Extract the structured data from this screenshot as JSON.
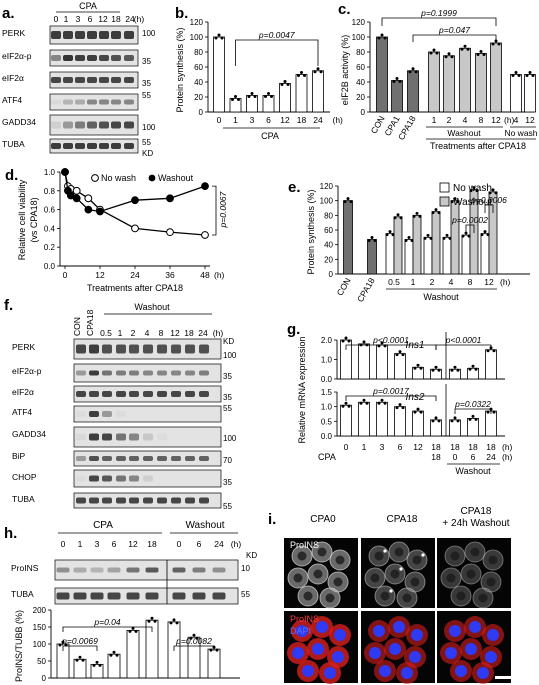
{
  "colors": {
    "ink": "#000000",
    "dark_bar": "#707070",
    "light_bar": "#c8c8c8",
    "white_bar": "#ffffff",
    "blot_bg": "#e3e3e3",
    "band": "#2a2a2a",
    "micro_bg": "#050505",
    "proins_red": "#d81e1e",
    "dapi_blue": "#2a3cff"
  },
  "panels": {
    "a": {
      "letter": "a.",
      "group": "CPA",
      "lanes": [
        "0",
        "1",
        "3",
        "6",
        "12",
        "18",
        "24",
        "(h)"
      ],
      "rows": [
        "PERK",
        "eIF2α-p",
        "eIF2α",
        "ATF4",
        "GADD34",
        "TUBA"
      ],
      "markers": [
        "100",
        "35",
        "35",
        "55",
        "100",
        "55"
      ],
      "kd": "KD"
    },
    "b": {
      "letter": "b.",
      "p": "p=0.0047",
      "xgroup": "CPA"
    },
    "c": {
      "letter": "c.",
      "p1": "p=0.1999",
      "p2": "p=0.047",
      "washout": "Washout",
      "nowash": "No wash",
      "treat": "Treatments after CPA18"
    },
    "d": {
      "letter": "d.",
      "legend_nowash": "No wash",
      "legend_washout": "Washout",
      "p": "p=0.0067",
      "xunit": "(h)",
      "xlabel": "Treatments after CPA18"
    },
    "e": {
      "letter": "e.",
      "legend_nowash": "No wash",
      "legend_washout": "Washout",
      "p1": "p=0.0002",
      "p2": "p=0.0006",
      "washout": "Washout"
    },
    "f": {
      "letter": "f.",
      "group": "Washout",
      "lanes": [
        "CON",
        "CPA18",
        "0.5",
        "1",
        "2",
        "4",
        "8",
        "12",
        "18",
        "24",
        "(h)"
      ],
      "rows": [
        "PERK",
        "eIF2α-p",
        "eIF2α",
        "ATF4",
        "GADD34",
        "BiP",
        "CHOP",
        "TUBA"
      ],
      "markers": [
        "100",
        "35",
        "35",
        "55",
        "100",
        "70",
        "35",
        "55"
      ],
      "kd": "KD"
    },
    "g": {
      "letter": "g.",
      "gene1": "Ins1",
      "gene2": "Ins2",
      "p1": "p<0.0001",
      "p2": "p<0.0001",
      "p3": "p=0.0017",
      "p4": "p=0.0322",
      "ylabel": "Relative mRNA expression",
      "cpa": "CPA",
      "washout": "Washout"
    },
    "h": {
      "letter": "h.",
      "group1": "CPA",
      "group2": "Washout",
      "lanes": [
        "0",
        "1",
        "3",
        "6",
        "12",
        "18",
        "0",
        "6",
        "24",
        "(h)"
      ],
      "rows": [
        "ProINS",
        "TUBA"
      ],
      "markers": [
        "10",
        "55"
      ],
      "kd": "KD",
      "ylabel": "ProINS/TUBB (%)",
      "p1": "p=0.0069",
      "p2": "p=0.04",
      "p3": "p=0.0082"
    },
    "i": {
      "letter": "i.",
      "col1": "CPA0",
      "col2": "CPA18",
      "col3": "CPA18",
      "col3b": "+ 24h Washout",
      "label_top": "ProINS",
      "label_bot1": "ProINS",
      "label_bot2": "DAPI"
    }
  },
  "chart_data": [
    {
      "panel": "b",
      "type": "bar",
      "title": "",
      "xlabel": "CPA",
      "ylabel": "Protein synthesis (%)",
      "categories": [
        "0",
        "1",
        "3",
        "6",
        "12",
        "18",
        "24"
      ],
      "xunit": "(h)",
      "values": [
        100,
        18,
        22,
        22,
        38,
        50,
        55
      ],
      "ylim": [
        0,
        120
      ],
      "yticks": [
        0,
        20,
        40,
        60,
        80,
        100,
        120
      ]
    },
    {
      "panel": "c",
      "type": "bar",
      "title": "",
      "ylabel": "eIF2B activity (%)",
      "categories": [
        "CON",
        "CPA1",
        "CPA18",
        "1",
        "2",
        "4",
        "8",
        "12",
        "4",
        "12"
      ],
      "xunit": "(h)",
      "values": [
        100,
        42,
        55,
        80,
        75,
        85,
        78,
        92,
        50,
        50
      ],
      "ylim": [
        0,
        120
      ],
      "yticks": [
        0,
        20,
        40,
        60,
        80,
        100,
        120
      ]
    },
    {
      "panel": "d",
      "type": "line",
      "title": "",
      "xlabel": "Treatments after CPA18",
      "ylabel": "Relative cell viability (vs CPA18)",
      "xticks": [
        0,
        12,
        24,
        36,
        48
      ],
      "xlim": [
        0,
        48
      ],
      "ylim": [
        0,
        1.0
      ],
      "yticks": [
        0,
        0.2,
        0.4,
        0.6,
        0.8,
        1.0
      ],
      "series": [
        {
          "name": "No wash",
          "x": [
            0,
            1,
            2,
            4,
            8,
            12,
            24,
            36,
            48
          ],
          "y": [
            1.0,
            0.85,
            0.82,
            0.8,
            0.72,
            0.6,
            0.4,
            0.36,
            0.33
          ]
        },
        {
          "name": "Washout",
          "x": [
            0,
            1,
            2,
            4,
            8,
            12,
            24,
            36,
            48
          ],
          "y": [
            1.0,
            0.8,
            0.75,
            0.72,
            0.6,
            0.58,
            0.7,
            0.72,
            0.85
          ]
        }
      ]
    },
    {
      "panel": "e",
      "type": "bar",
      "title": "",
      "xlabel": "Washout",
      "ylabel": "Protein synthesis (%)",
      "categories": [
        "CON",
        "CPA18",
        "0.5",
        "1",
        "2",
        "4",
        "8",
        "12"
      ],
      "xunit": "(h)",
      "series": [
        {
          "name": "No wash",
          "values": [
            null,
            null,
            55,
            47,
            50,
            50,
            53,
            55
          ]
        },
        {
          "name": "Washout",
          "values": [
            null,
            null,
            78,
            80,
            85,
            100,
            115,
            112
          ]
        }
      ],
      "single": [
        100,
        47
      ],
      "ylim": [
        0,
        120
      ],
      "yticks": [
        0,
        20,
        40,
        60,
        80,
        100,
        120
      ]
    },
    {
      "panel": "g-ins1",
      "type": "bar",
      "title": "Ins1",
      "ylabel": "Relative mRNA expression",
      "categories": [
        "0",
        "1",
        "3",
        "6",
        "12",
        "18",
        "0",
        "6",
        "24"
      ],
      "values": [
        2.0,
        1.8,
        1.75,
        1.3,
        0.6,
        0.5,
        0.5,
        0.55,
        1.5
      ],
      "ylim": [
        0,
        2.0
      ],
      "yticks": [
        0,
        1.0,
        2.0
      ]
    },
    {
      "panel": "g-ins2",
      "type": "bar",
      "title": "Ins2",
      "ylabel": "Relative mRNA expression",
      "categories": [
        "0",
        "1",
        "3",
        "6",
        "12",
        "18",
        "0",
        "6",
        "24"
      ],
      "values": [
        1.05,
        1.15,
        1.15,
        1.0,
        0.85,
        0.55,
        0.55,
        0.6,
        0.85
      ],
      "ylim": [
        0,
        1.5
      ],
      "yticks": [
        0,
        0.5,
        1.0,
        1.5
      ]
    },
    {
      "panel": "h",
      "type": "bar",
      "title": "",
      "ylabel": "ProINS/TUBB (%)",
      "categories": [
        "0",
        "1",
        "3",
        "6",
        "12",
        "18",
        "0",
        "6",
        "24"
      ],
      "values": [
        100,
        55,
        40,
        70,
        140,
        170,
        165,
        120,
        85
      ],
      "ylim": [
        0,
        200
      ],
      "yticks": [
        0,
        50,
        100,
        150,
        200
      ]
    }
  ]
}
